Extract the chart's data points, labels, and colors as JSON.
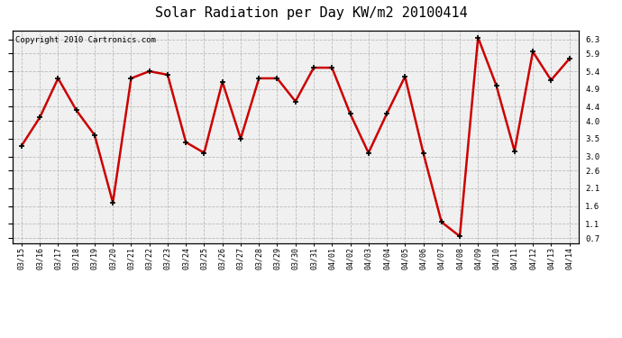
{
  "title": "Solar Radiation per Day KW/m2 20100414",
  "copyright_text": "Copyright 2010 Cartronics.com",
  "labels": [
    "03/15",
    "03/16",
    "03/17",
    "03/18",
    "03/19",
    "03/20",
    "03/21",
    "03/22",
    "03/23",
    "03/24",
    "03/25",
    "03/26",
    "03/27",
    "03/28",
    "03/29",
    "03/30",
    "03/31",
    "04/01",
    "04/02",
    "04/03",
    "04/04",
    "04/05",
    "04/06",
    "04/07",
    "04/08",
    "04/09",
    "04/10",
    "04/11",
    "04/12",
    "04/13",
    "04/14"
  ],
  "values": [
    3.3,
    4.1,
    5.2,
    4.3,
    3.6,
    1.7,
    5.2,
    5.4,
    5.3,
    3.4,
    3.1,
    5.1,
    3.5,
    5.2,
    5.2,
    4.55,
    5.5,
    5.5,
    4.2,
    3.1,
    4.2,
    5.25,
    3.1,
    1.15,
    0.75,
    6.35,
    5.0,
    3.15,
    5.95,
    5.15,
    5.75
  ],
  "line_color": "#cc0000",
  "line_width": 1.8,
  "ylim": [
    0.55,
    6.55
  ],
  "yticks": [
    0.7,
    1.1,
    1.6,
    2.1,
    2.6,
    3.0,
    3.5,
    4.0,
    4.4,
    4.9,
    5.4,
    5.9,
    6.3
  ],
  "grid_color": "#bbbbbb",
  "bg_color": "#ffffff",
  "plot_bg_color": "#f0f0f0",
  "title_fontsize": 11,
  "tick_fontsize": 6,
  "copyright_fontsize": 6.5
}
